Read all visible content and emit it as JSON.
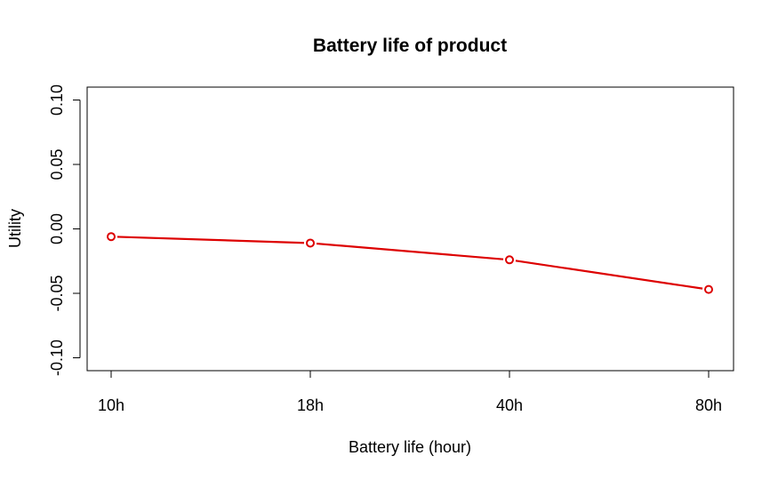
{
  "chart_data": {
    "type": "line",
    "title": "Battery life of product",
    "xlabel": "Battery life (hour)",
    "ylabel": "Utility",
    "categories": [
      "10h",
      "18h",
      "40h",
      "80h"
    ],
    "series": [
      {
        "values": [
          -0.006,
          -0.011,
          -0.024,
          -0.047
        ],
        "color": "#dd0000"
      }
    ],
    "ylim": [
      -0.11,
      0.11
    ],
    "yticks": [
      -0.1,
      -0.05,
      0.0,
      0.05,
      0.1
    ],
    "ytick_labels": [
      "-0.10",
      "-0.05",
      "0.00",
      "0.05",
      "0.10"
    ],
    "grid": false,
    "legend": "none"
  }
}
